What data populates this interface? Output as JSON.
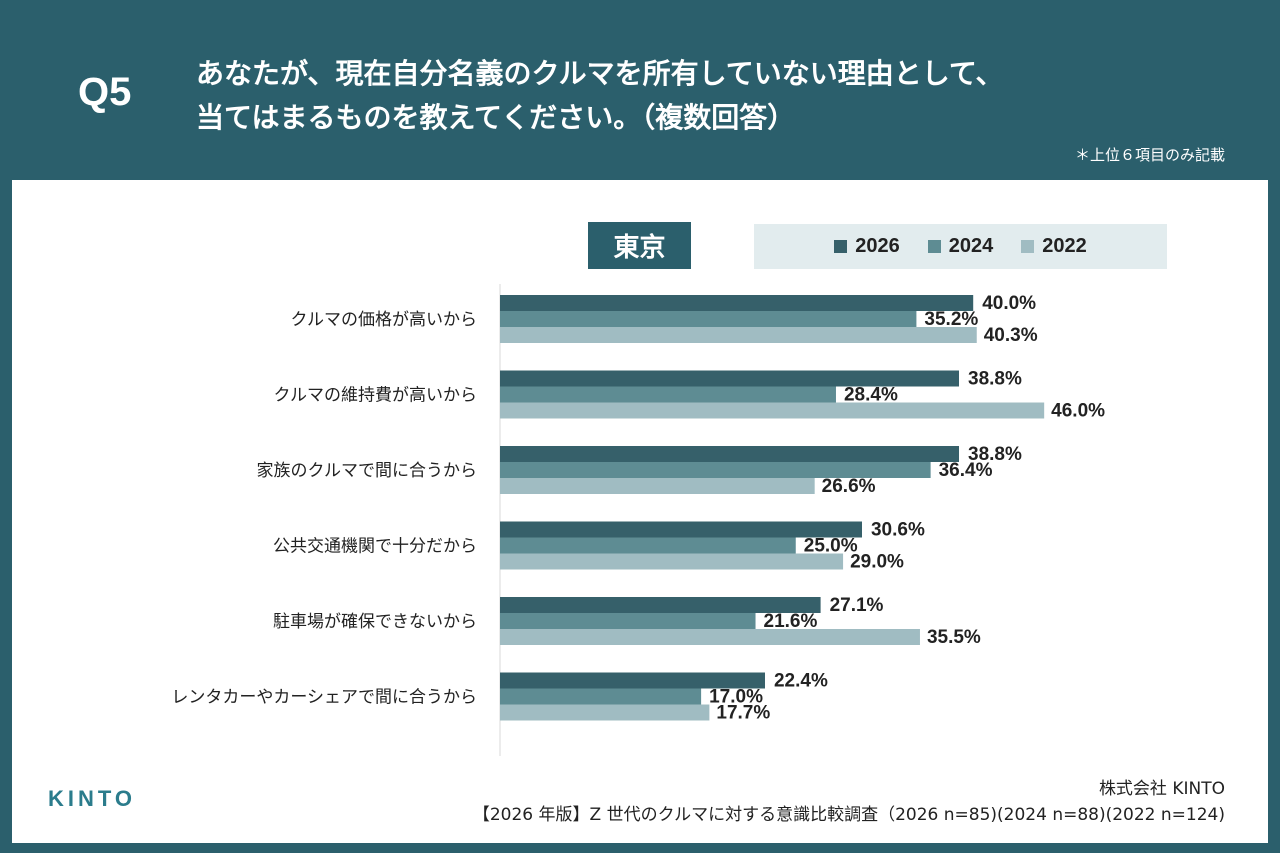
{
  "header": {
    "q_label": "Q5",
    "question_line1": "あなたが、現在自分名義のクルマを所有していない理由として、",
    "question_line2": "当てはまるものを教えてください。（複数回答）",
    "note": "＊上位６項目のみ記載"
  },
  "city": "東京",
  "colors": {
    "s2026": "#36606a",
    "s2024": "#5e8c93",
    "s2022": "#a0bcc2",
    "header_bg": "#2b5f6c",
    "legend_bg": "#e2ecee"
  },
  "chart_data": {
    "type": "bar",
    "orientation": "horizontal",
    "title": "東京",
    "categories": [
      "クルマの価格が高いから",
      "クルマの維持費が高いから",
      "家族のクルマで間に合うから",
      "公共交通機関で十分だから",
      "駐車場が確保できないから",
      "レンタカーやカーシェアで間に合うから"
    ],
    "series": [
      {
        "name": "2026",
        "values": [
          40.0,
          38.8,
          38.8,
          30.6,
          27.1,
          22.4
        ]
      },
      {
        "name": "2024",
        "values": [
          35.2,
          28.4,
          36.4,
          25.0,
          21.6,
          17.0
        ]
      },
      {
        "name": "2022",
        "values": [
          40.3,
          46.0,
          26.6,
          29.0,
          35.5,
          17.7
        ]
      }
    ],
    "value_suffix": "%",
    "xlim": [
      0,
      50
    ],
    "legend_position": "top-right"
  },
  "footer": {
    "logo": "KINTO",
    "company": "株式会社 KINTO",
    "source": "【2026 年版】Z 世代のクルマに対する意識比較調査（2026 n=85)(2024 n=88)(2022 n=124)"
  }
}
